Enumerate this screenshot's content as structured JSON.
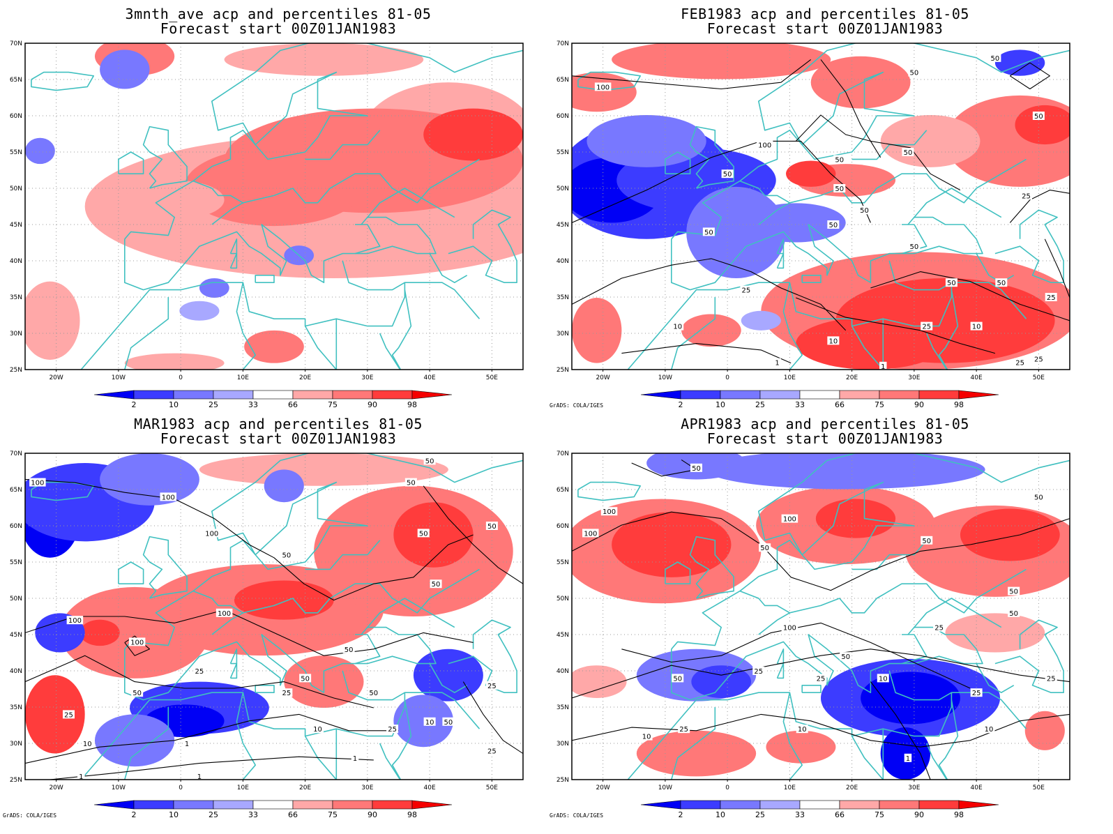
{
  "colors": {
    "shades": [
      "#0000f5",
      "#3c3cff",
      "#7878ff",
      "#a8a8ff",
      "#ffffff",
      "#ffa8a8",
      "#ff7878",
      "#ff3c3c",
      "#f50000"
    ],
    "coast": "#40c0c0",
    "contour": "#000000"
  },
  "chart_data": [
    {
      "type": "heatmap",
      "title": "3mnth_ave acp and percentiles 81-05",
      "subtitle": "Forecast start 00Z01JAN1983",
      "x_ticks": [
        "20W",
        "10W",
        "0",
        "10E",
        "20E",
        "30E",
        "40E",
        "50E"
      ],
      "y_ticks": [
        "25N",
        "30N",
        "35N",
        "40N",
        "45N",
        "50N",
        "55N",
        "60N",
        "65N",
        "70N"
      ],
      "xlim": [
        -25,
        55
      ],
      "ylim": [
        25,
        70
      ],
      "legend_levels": [
        "2",
        "10",
        "25",
        "33",
        "66",
        "75",
        "90",
        "98"
      ],
      "contour_labels": [],
      "credit": ""
    },
    {
      "type": "heatmap",
      "title": "FEB1983 acp and percentiles 81-05",
      "subtitle": "Forecast start 00Z01JAN1983",
      "x_ticks": [
        "20W",
        "10W",
        "0",
        "10E",
        "20E",
        "30E",
        "40E",
        "50E"
      ],
      "y_ticks": [
        "25N",
        "30N",
        "35N",
        "40N",
        "45N",
        "50N",
        "55N",
        "60N",
        "65N",
        "70N"
      ],
      "xlim": [
        -25,
        55
      ],
      "ylim": [
        25,
        70
      ],
      "legend_levels": [
        "2",
        "10",
        "25",
        "33",
        "66",
        "75",
        "90",
        "98"
      ],
      "contour_labels": [
        {
          "text": "100",
          "lon": -20,
          "lat": 64
        },
        {
          "text": "50",
          "lon": 30,
          "lat": 66
        },
        {
          "text": "50",
          "lon": 43,
          "lat": 68
        },
        {
          "text": "100",
          "lon": 6,
          "lat": 56
        },
        {
          "text": "50",
          "lon": 0,
          "lat": 52
        },
        {
          "text": "50",
          "lon": 18,
          "lat": 54
        },
        {
          "text": "50",
          "lon": 29,
          "lat": 55
        },
        {
          "text": "50",
          "lon": 50,
          "lat": 60
        },
        {
          "text": "50",
          "lon": 18,
          "lat": 50
        },
        {
          "text": "50",
          "lon": 22,
          "lat": 47
        },
        {
          "text": "25",
          "lon": 48,
          "lat": 49
        },
        {
          "text": "50",
          "lon": -3,
          "lat": 44
        },
        {
          "text": "50",
          "lon": 17,
          "lat": 45
        },
        {
          "text": "50",
          "lon": 30,
          "lat": 42
        },
        {
          "text": "50",
          "lon": 36,
          "lat": 37
        },
        {
          "text": "50",
          "lon": 44,
          "lat": 37
        },
        {
          "text": "25",
          "lon": 3,
          "lat": 36
        },
        {
          "text": "25",
          "lon": 52,
          "lat": 35
        },
        {
          "text": "10",
          "lon": -8,
          "lat": 31
        },
        {
          "text": "25",
          "lon": 32,
          "lat": 31
        },
        {
          "text": "10",
          "lon": 40,
          "lat": 31
        },
        {
          "text": "10",
          "lon": 17,
          "lat": 29
        },
        {
          "text": "1",
          "lon": 8,
          "lat": 26
        },
        {
          "text": "1",
          "lon": 25,
          "lat": 25.5
        },
        {
          "text": "25",
          "lon": 47,
          "lat": 26
        },
        {
          "text": "25",
          "lon": 50,
          "lat": 26.5
        }
      ],
      "credit": "GrADS: COLA/IGES"
    },
    {
      "type": "heatmap",
      "title": "MAR1983 acp and percentiles 81-05",
      "subtitle": "Forecast start 00Z01JAN1983",
      "x_ticks": [
        "20W",
        "10W",
        "0",
        "10E",
        "20E",
        "30E",
        "40E",
        "50E"
      ],
      "y_ticks": [
        "25N",
        "30N",
        "35N",
        "40N",
        "45N",
        "50N",
        "55N",
        "60N",
        "65N",
        "70N"
      ],
      "xlim": [
        -25,
        55
      ],
      "ylim": [
        25,
        70
      ],
      "legend_levels": [
        "2",
        "10",
        "25",
        "33",
        "66",
        "75",
        "90",
        "98"
      ],
      "contour_labels": [
        {
          "text": "100",
          "lon": -23,
          "lat": 66
        },
        {
          "text": "100",
          "lon": -2,
          "lat": 64
        },
        {
          "text": "100",
          "lon": 5,
          "lat": 59
        },
        {
          "text": "50",
          "lon": 17,
          "lat": 56
        },
        {
          "text": "50",
          "lon": 40,
          "lat": 69
        },
        {
          "text": "50",
          "lon": 37,
          "lat": 66
        },
        {
          "text": "50",
          "lon": 39,
          "lat": 59
        },
        {
          "text": "50",
          "lon": 50,
          "lat": 60
        },
        {
          "text": "50",
          "lon": 41,
          "lat": 52
        },
        {
          "text": "100",
          "lon": -17,
          "lat": 47
        },
        {
          "text": "100",
          "lon": 7,
          "lat": 48
        },
        {
          "text": "100",
          "lon": -7,
          "lat": 44
        },
        {
          "text": "50",
          "lon": 27,
          "lat": 43
        },
        {
          "text": "25",
          "lon": 3,
          "lat": 40
        },
        {
          "text": "50",
          "lon": -7,
          "lat": 37
        },
        {
          "text": "50",
          "lon": 20,
          "lat": 39
        },
        {
          "text": "25",
          "lon": 17,
          "lat": 37
        },
        {
          "text": "50",
          "lon": 31,
          "lat": 37
        },
        {
          "text": "25",
          "lon": 50,
          "lat": 38
        },
        {
          "text": "25",
          "lon": -18,
          "lat": 34
        },
        {
          "text": "50",
          "lon": 43,
          "lat": 33
        },
        {
          "text": "10",
          "lon": 40,
          "lat": 33
        },
        {
          "text": "25",
          "lon": 34,
          "lat": 32
        },
        {
          "text": "10",
          "lon": 22,
          "lat": 32
        },
        {
          "text": "10",
          "lon": -15,
          "lat": 30
        },
        {
          "text": "1",
          "lon": 1,
          "lat": 30
        },
        {
          "text": "25",
          "lon": 50,
          "lat": 29
        },
        {
          "text": "1",
          "lon": 28,
          "lat": 28
        },
        {
          "text": "1",
          "lon": -16,
          "lat": 25.5
        },
        {
          "text": "1",
          "lon": 3,
          "lat": 25.5
        }
      ],
      "credit": "GrADS: COLA/IGES"
    },
    {
      "type": "heatmap",
      "title": "APR1983 acp and percentiles 81-05",
      "subtitle": "Forecast start 00Z01JAN1983",
      "x_ticks": [
        "20W",
        "10W",
        "0",
        "10E",
        "20E",
        "30E",
        "40E",
        "50E"
      ],
      "y_ticks": [
        "25N",
        "30N",
        "35N",
        "40N",
        "45N",
        "50N",
        "55N",
        "60N",
        "65N",
        "70N"
      ],
      "xlim": [
        -25,
        55
      ],
      "ylim": [
        25,
        70
      ],
      "legend_levels": [
        "2",
        "10",
        "25",
        "33",
        "66",
        "75",
        "90",
        "98"
      ],
      "contour_labels": [
        {
          "text": "50",
          "lon": -5,
          "lat": 68
        },
        {
          "text": "100",
          "lon": -19,
          "lat": 62
        },
        {
          "text": "100",
          "lon": -22,
          "lat": 59
        },
        {
          "text": "100",
          "lon": 10,
          "lat": 61
        },
        {
          "text": "50",
          "lon": 50,
          "lat": 64
        },
        {
          "text": "50",
          "lon": 6,
          "lat": 57
        },
        {
          "text": "50",
          "lon": 32,
          "lat": 58
        },
        {
          "text": "50",
          "lon": 46,
          "lat": 51
        },
        {
          "text": "50",
          "lon": 46,
          "lat": 48
        },
        {
          "text": "100",
          "lon": 10,
          "lat": 46
        },
        {
          "text": "25",
          "lon": 34,
          "lat": 46
        },
        {
          "text": "50",
          "lon": 19,
          "lat": 42
        },
        {
          "text": "50",
          "lon": -8,
          "lat": 39
        },
        {
          "text": "25",
          "lon": 5,
          "lat": 40
        },
        {
          "text": "10",
          "lon": 25,
          "lat": 39
        },
        {
          "text": "25",
          "lon": 15,
          "lat": 39
        },
        {
          "text": "25",
          "lon": 52,
          "lat": 39
        },
        {
          "text": "25",
          "lon": 40,
          "lat": 37
        },
        {
          "text": "25",
          "lon": -7,
          "lat": 32
        },
        {
          "text": "10",
          "lon": 12,
          "lat": 32
        },
        {
          "text": "10",
          "lon": 42,
          "lat": 32
        },
        {
          "text": "10",
          "lon": -13,
          "lat": 31
        },
        {
          "text": "1",
          "lon": 29,
          "lat": 28
        }
      ],
      "credit": "GrADS: COLA/IGES"
    }
  ]
}
